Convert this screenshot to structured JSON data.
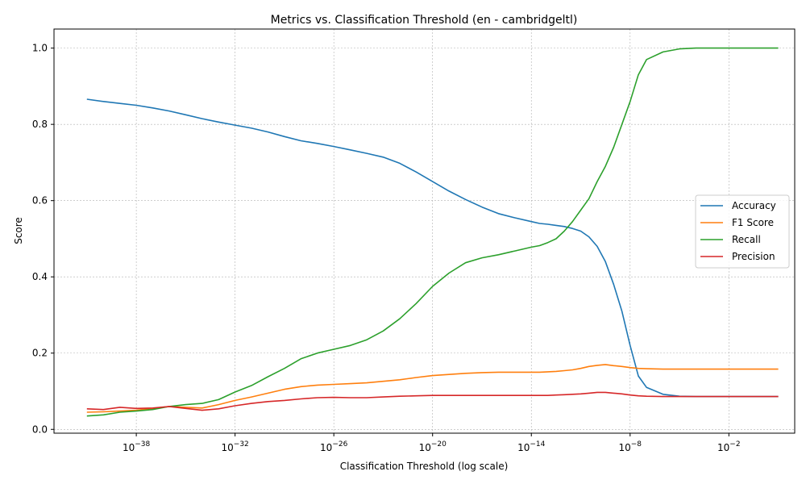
{
  "chart_data": {
    "type": "line",
    "title": "Metrics vs. Classification Threshold (en - cambridgeltl)",
    "xlabel": "Classification Threshold (log scale)",
    "ylabel": "Score",
    "x_scale": "log10",
    "x_exponent_range": [
      -43.0,
      2.0
    ],
    "xlim": [
      "1e-43",
      "1e2"
    ],
    "ylim": [
      -0.01,
      1.05
    ],
    "grid": true,
    "legend_position": "center right",
    "x_ticks": [
      {
        "exp": -38,
        "base": "10",
        "sup": "−38"
      },
      {
        "exp": -32,
        "base": "10",
        "sup": "−32"
      },
      {
        "exp": -26,
        "base": "10",
        "sup": "−26"
      },
      {
        "exp": -20,
        "base": "10",
        "sup": "−20"
      },
      {
        "exp": -14,
        "base": "10",
        "sup": "−14"
      },
      {
        "exp": -8,
        "base": "10",
        "sup": "−8"
      },
      {
        "exp": -2,
        "base": "10",
        "sup": "−2"
      }
    ],
    "y_ticks": [
      {
        "value": 0.0,
        "label": "0.0"
      },
      {
        "value": 0.2,
        "label": "0.2"
      },
      {
        "value": 0.4,
        "label": "0.4"
      },
      {
        "value": 0.6,
        "label": "0.6"
      },
      {
        "value": 0.8,
        "label": "0.8"
      },
      {
        "value": 1.0,
        "label": "1.0"
      }
    ],
    "x_exp": [
      -41,
      -40,
      -39,
      -38,
      -37,
      -36,
      -35,
      -34,
      -33,
      -32,
      -31,
      -30,
      -29,
      -28,
      -27,
      -26,
      -25,
      -24,
      -23,
      -22,
      -21,
      -20,
      -19,
      -18,
      -17,
      -16,
      -15,
      -14,
      -13.5,
      -13,
      -12.5,
      -12,
      -11.5,
      -11,
      -10.5,
      -10,
      -9.5,
      -9,
      -8.5,
      -8,
      -7.5,
      -7,
      -6,
      -5,
      -4,
      -3,
      -2,
      -1,
      0,
      1
    ],
    "series": [
      {
        "name": "Accuracy",
        "color": "#1f77b4",
        "values": [
          0.866,
          0.86,
          0.855,
          0.85,
          0.843,
          0.835,
          0.825,
          0.815,
          0.806,
          0.798,
          0.79,
          0.78,
          0.768,
          0.757,
          0.75,
          0.742,
          0.733,
          0.724,
          0.714,
          0.698,
          0.675,
          0.65,
          0.625,
          0.603,
          0.583,
          0.566,
          0.555,
          0.545,
          0.54,
          0.538,
          0.535,
          0.532,
          0.527,
          0.52,
          0.505,
          0.48,
          0.44,
          0.38,
          0.31,
          0.22,
          0.14,
          0.11,
          0.092,
          0.087,
          0.086,
          0.086,
          0.086,
          0.086,
          0.086,
          0.086
        ]
      },
      {
        "name": "F1 Score",
        "color": "#ff7f0e",
        "values": [
          0.045,
          0.046,
          0.048,
          0.05,
          0.055,
          0.06,
          0.058,
          0.056,
          0.065,
          0.076,
          0.085,
          0.095,
          0.105,
          0.112,
          0.116,
          0.118,
          0.12,
          0.122,
          0.126,
          0.13,
          0.136,
          0.141,
          0.144,
          0.147,
          0.149,
          0.15,
          0.15,
          0.15,
          0.15,
          0.151,
          0.152,
          0.154,
          0.156,
          0.16,
          0.165,
          0.168,
          0.17,
          0.167,
          0.165,
          0.162,
          0.16,
          0.159,
          0.158,
          0.158,
          0.158,
          0.158,
          0.158,
          0.158,
          0.158,
          0.158
        ]
      },
      {
        "name": "Recall",
        "color": "#2ca02c",
        "values": [
          0.035,
          0.038,
          0.045,
          0.048,
          0.052,
          0.06,
          0.065,
          0.068,
          0.078,
          0.098,
          0.115,
          0.138,
          0.16,
          0.185,
          0.2,
          0.21,
          0.22,
          0.235,
          0.258,
          0.29,
          0.33,
          0.375,
          0.41,
          0.437,
          0.45,
          0.458,
          0.468,
          0.478,
          0.482,
          0.49,
          0.5,
          0.52,
          0.545,
          0.575,
          0.605,
          0.65,
          0.69,
          0.74,
          0.8,
          0.86,
          0.93,
          0.97,
          0.99,
          0.998,
          1.0,
          1.0,
          1.0,
          1.0,
          1.0,
          1.0
        ]
      },
      {
        "name": "Precision",
        "color": "#d62728",
        "values": [
          0.054,
          0.052,
          0.058,
          0.055,
          0.056,
          0.06,
          0.055,
          0.05,
          0.054,
          0.062,
          0.068,
          0.073,
          0.076,
          0.08,
          0.083,
          0.084,
          0.083,
          0.083,
          0.085,
          0.087,
          0.088,
          0.089,
          0.089,
          0.089,
          0.089,
          0.089,
          0.089,
          0.089,
          0.089,
          0.089,
          0.09,
          0.091,
          0.092,
          0.093,
          0.095,
          0.097,
          0.097,
          0.095,
          0.093,
          0.09,
          0.088,
          0.087,
          0.086,
          0.086,
          0.086,
          0.086,
          0.086,
          0.086,
          0.086,
          0.086
        ]
      }
    ]
  }
}
